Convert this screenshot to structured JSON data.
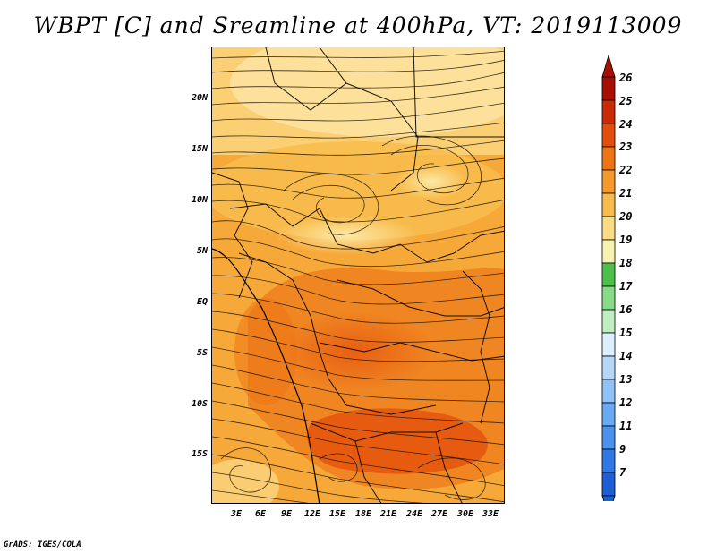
{
  "title": "WBPT [C] and Sreamline at 400hPa, VT: 2019113009",
  "credit": "GrADS: IGES/COLA",
  "latitude_labels": [
    "20N",
    "15N",
    "10N",
    "5N",
    "EQ",
    "5S",
    "10S",
    "15S"
  ],
  "longitude_labels": [
    "3E",
    "6E",
    "9E",
    "12E",
    "15E",
    "18E",
    "21E",
    "24E",
    "27E",
    "30E",
    "33E"
  ],
  "colorbar": {
    "labels": [
      "7",
      "9",
      "11",
      "12",
      "13",
      "14",
      "15",
      "16",
      "17",
      "18",
      "19",
      "20",
      "21",
      "22",
      "23",
      "24",
      "25",
      "26"
    ],
    "colors": [
      "#1f5fd6",
      "#2f78e6",
      "#4a92ee",
      "#6aaaf2",
      "#8fc2f6",
      "#b5d8fa",
      "#dcefff",
      "#bfeec0",
      "#86dc84",
      "#4cc04a",
      "#f8f2b0",
      "#fbdc84",
      "#f8bc4e",
      "#f59a2a",
      "#ef7416",
      "#e44e0c",
      "#cc2a06",
      "#a80e02"
    ]
  },
  "variable": "WBPT [C]",
  "level": "400hPa",
  "valid_time": "2019113009"
}
